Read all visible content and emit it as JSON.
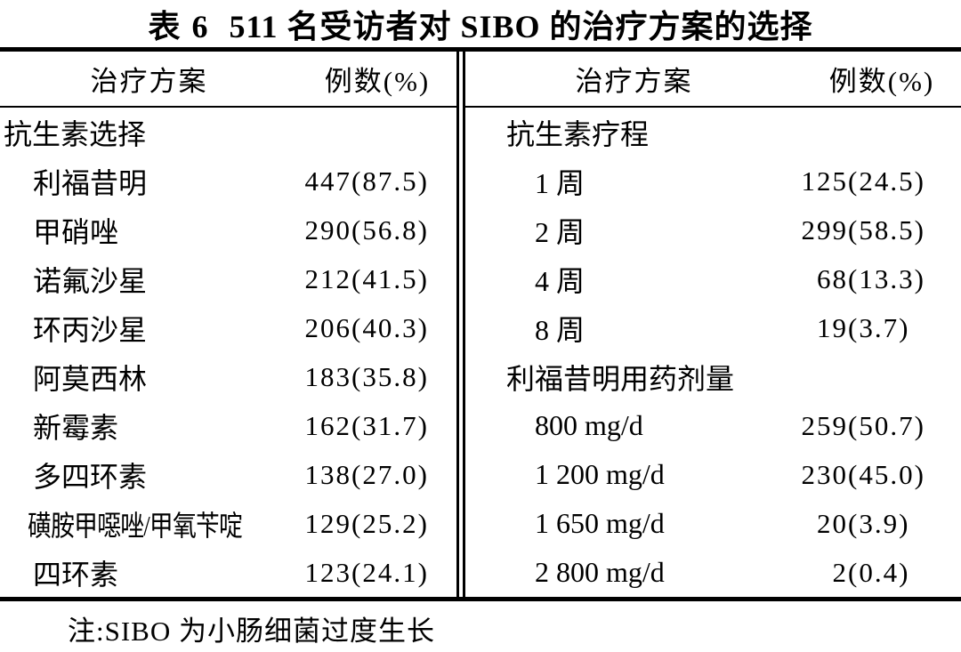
{
  "title": {
    "tag": "表 6",
    "text": "511 名受访者对 SIBO 的治疗方案的选择"
  },
  "columns": {
    "plan": "治疗方案",
    "cases": "例数(%)"
  },
  "left": {
    "rows": [
      {
        "label": "抗生素选择"
      },
      {
        "label": "利福昔明",
        "count": "447",
        "pct": "(87.5)"
      },
      {
        "label": "甲硝唑",
        "count": "290",
        "pct": "(56.8)"
      },
      {
        "label": "诺氟沙星",
        "count": "212",
        "pct": "(41.5)"
      },
      {
        "label": "环丙沙星",
        "count": "206",
        "pct": "(40.3)"
      },
      {
        "label": "阿莫西林",
        "count": "183",
        "pct": "(35.8)"
      },
      {
        "label": "新霉素",
        "count": "162",
        "pct": "(31.7)"
      },
      {
        "label": "多四环素",
        "count": "138",
        "pct": "(27.0)"
      },
      {
        "label": "磺胺甲噁唑/甲氧苄啶",
        "count": "129",
        "pct": "(25.2)"
      },
      {
        "label": "四环素",
        "count": "123",
        "pct": "(24.1)"
      }
    ]
  },
  "right": {
    "rows": [
      {
        "label": "抗生素疗程"
      },
      {
        "label": "1 周",
        "count": "125",
        "pct": "(24.5)"
      },
      {
        "label": "2 周",
        "count": "299",
        "pct": "(58.5)"
      },
      {
        "label": "4 周",
        "count": "68",
        "pct": "(13.3)"
      },
      {
        "label": "8 周",
        "count": "19",
        "pct": "(3.7)"
      },
      {
        "label": "利福昔明用药剂量"
      },
      {
        "label": "800 mg/d",
        "count": "259",
        "pct": "(50.7)"
      },
      {
        "label": "1 200 mg/d",
        "count": "230",
        "pct": "(45.0)"
      },
      {
        "label": "1 650 mg/d",
        "count": "20",
        "pct": "(3.9)"
      },
      {
        "label": "2 800 mg/d",
        "count": "2",
        "pct": "(0.4)"
      }
    ]
  },
  "note": "注:SIBO 为小肠细菌过度生长"
}
